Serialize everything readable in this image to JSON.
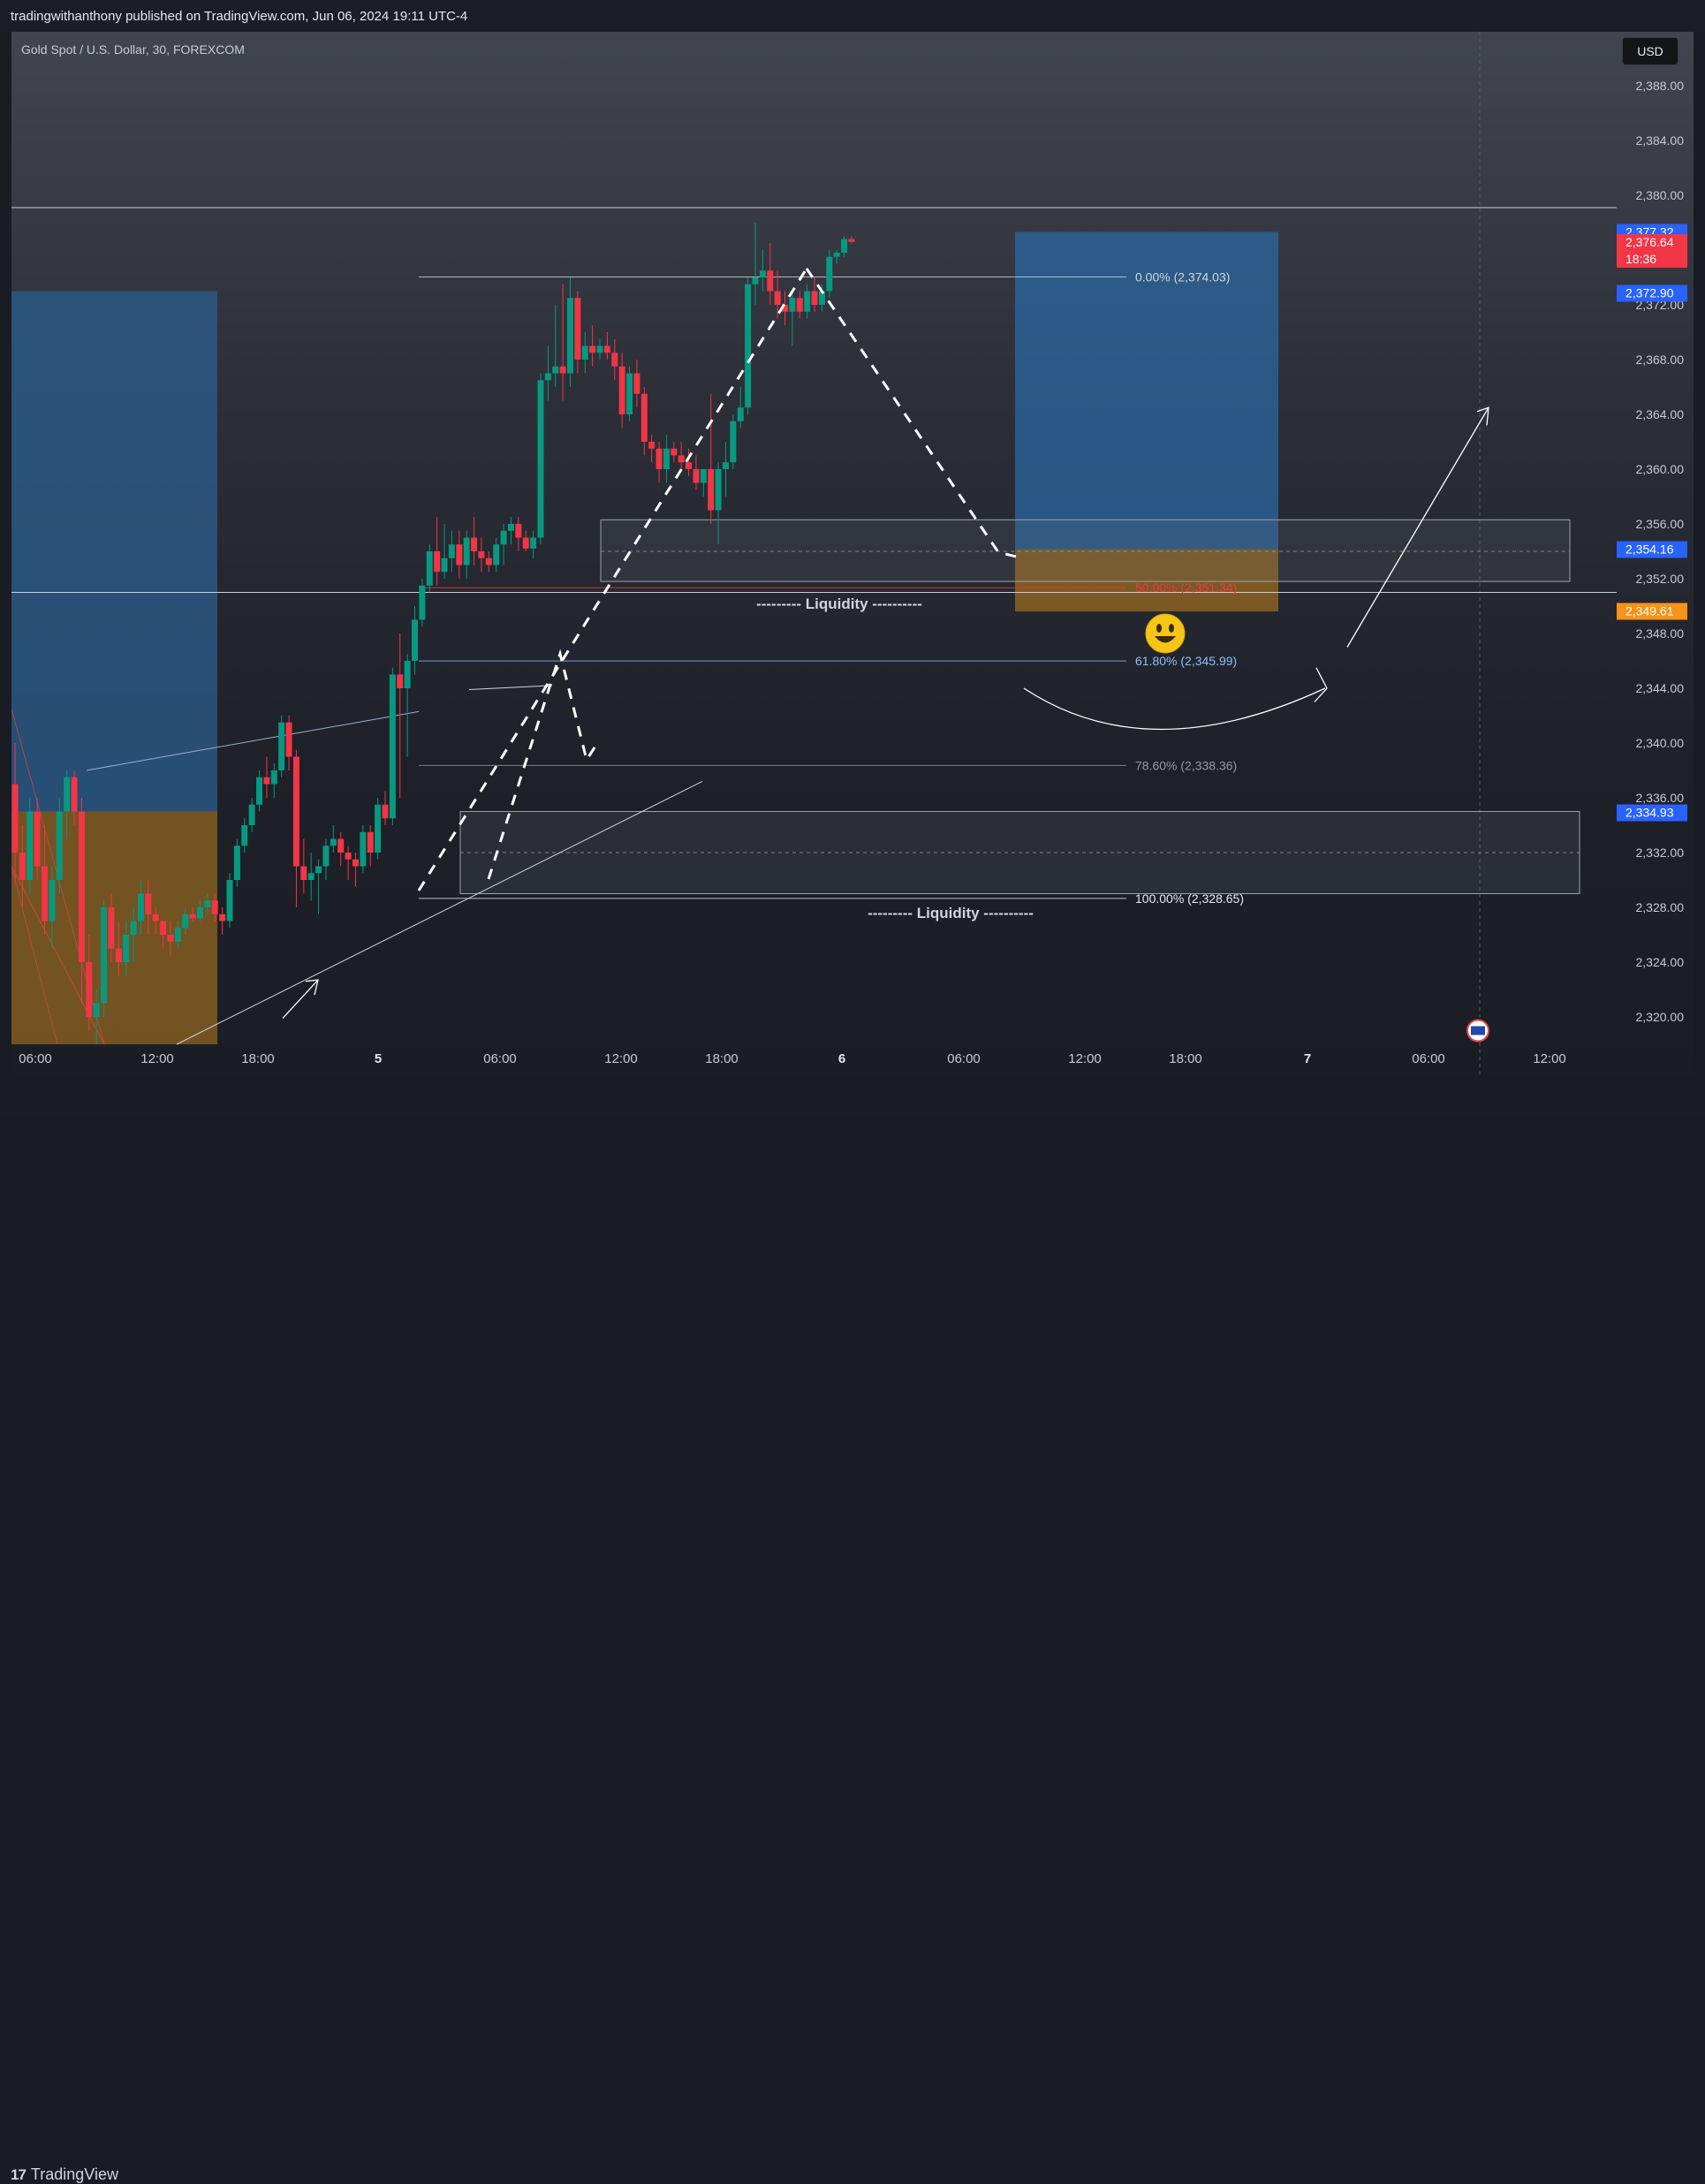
{
  "header": {
    "published_text": "tradingwithanthony published on TradingView.com, Jun 06, 2024 19:11 UTC-4"
  },
  "chart": {
    "symbol_title": "Gold Spot / U.S. Dollar, 30, FOREXCOM",
    "currency": "USD"
  },
  "chart_data": {
    "type": "candlestick",
    "y_axis_ticks": [
      "2,388.00",
      "2,384.00",
      "2,380.00",
      "2,372.00",
      "2,368.00",
      "2,364.00",
      "2,360.00",
      "2,356.00",
      "2,352.00",
      "2,348.00",
      "2,344.00",
      "2,340.00",
      "2,336.00",
      "2,332.00",
      "2,328.00",
      "2,324.00",
      "2,320.00"
    ],
    "x_axis_ticks": [
      {
        "label": "06:00",
        "bold": false
      },
      {
        "label": "12:00",
        "bold": false
      },
      {
        "label": "18:00",
        "bold": false
      },
      {
        "label": "5",
        "bold": true
      },
      {
        "label": "06:00",
        "bold": false
      },
      {
        "label": "12:00",
        "bold": false
      },
      {
        "label": "18:00",
        "bold": false
      },
      {
        "label": "6",
        "bold": true
      },
      {
        "label": "06:00",
        "bold": false
      },
      {
        "label": "12:00",
        "bold": false
      },
      {
        "label": "18:00",
        "bold": false
      },
      {
        "label": "7",
        "bold": true
      },
      {
        "label": "06:00",
        "bold": false
      },
      {
        "label": "12:00",
        "bold": false
      }
    ],
    "price_tags": [
      {
        "label": "2,377.32",
        "price": 2377.32,
        "color": "#2962ff"
      },
      {
        "label": "2,376.64",
        "label2": "18:36",
        "price": 2376.64,
        "color": "#f23645"
      },
      {
        "label": "2,372.90",
        "price": 2372.9,
        "color": "#2962ff"
      },
      {
        "label": "2,354.16",
        "price": 2354.16,
        "color": "#2962ff"
      },
      {
        "label": "2,349.61",
        "price": 2349.61,
        "color": "#f7931a"
      },
      {
        "label": "2,334.93",
        "price": 2334.93,
        "color": "#2962ff"
      }
    ],
    "fib_levels": [
      {
        "label": "0.00% (2,374.03)",
        "price": 2374.03,
        "color": "#d1d4dc"
      },
      {
        "label": "50.00% (2,351.34)",
        "price": 2351.34,
        "color": "#f23645"
      },
      {
        "label": "61.80% (2,345.99)",
        "price": 2345.99,
        "color": "#90bff9"
      },
      {
        "label": "78.60% (2,338.36)",
        "price": 2338.36,
        "color": "#9598a1"
      },
      {
        "label": "100.00% (2,328.65)",
        "price": 2328.65,
        "color": "#e6e8ee"
      }
    ],
    "annotations": [
      {
        "text": "--------- Liquidity ----------",
        "price": 2350.2
      },
      {
        "text": "--------- Liquidity ----------",
        "price": 2327.6
      }
    ],
    "horizontal_lines": [
      2379.1,
      2351.0
    ],
    "candles": [
      [
        2337.0,
        2340.0,
        2330.0,
        2332.0
      ],
      [
        2332.0,
        2334.0,
        2328.0,
        2330.0
      ],
      [
        2330.0,
        2336.0,
        2329.0,
        2335.0
      ],
      [
        2335.0,
        2336.0,
        2330.0,
        2331.0
      ],
      [
        2331.0,
        2334.0,
        2326.0,
        2327.0
      ],
      [
        2327.0,
        2331.0,
        2325.0,
        2330.0
      ],
      [
        2330.0,
        2336.0,
        2329.0,
        2335.0
      ],
      [
        2335.0,
        2338.0,
        2333.0,
        2337.5
      ],
      [
        2337.5,
        2338.0,
        2334.0,
        2335.0
      ],
      [
        2335.0,
        2336.0,
        2321.0,
        2324.0
      ],
      [
        2324.0,
        2326.0,
        2319.0,
        2320.0
      ],
      [
        2320.0,
        2322.0,
        2318.0,
        2321.0
      ],
      [
        2321.0,
        2328.5,
        2320.0,
        2328.0
      ],
      [
        2328.0,
        2329.0,
        2324.0,
        2325.0
      ],
      [
        2325.0,
        2327.0,
        2323.0,
        2324.0
      ],
      [
        2324.0,
        2327.0,
        2323.0,
        2326.0
      ],
      [
        2326.0,
        2328.0,
        2324.0,
        2327.0
      ],
      [
        2327.0,
        2330.0,
        2326.0,
        2329.0
      ],
      [
        2329.0,
        2330.0,
        2326.0,
        2327.5
      ],
      [
        2327.5,
        2328.0,
        2326.0,
        2327.0
      ],
      [
        2327.0,
        2327.0,
        2325.0,
        2326.0
      ],
      [
        2326.0,
        2327.0,
        2324.5,
        2325.5
      ],
      [
        2325.5,
        2327.0,
        2325.0,
        2326.5
      ],
      [
        2326.5,
        2328.0,
        2326.0,
        2327.5
      ],
      [
        2327.5,
        2328.0,
        2327.0,
        2327.2
      ],
      [
        2327.2,
        2328.5,
        2327.0,
        2328.0
      ],
      [
        2328.0,
        2329.0,
        2327.5,
        2328.5
      ],
      [
        2328.5,
        2329.0,
        2327.0,
        2327.5
      ],
      [
        2327.5,
        2328.0,
        2326.0,
        2327.0
      ],
      [
        2327.0,
        2330.5,
        2326.5,
        2330.0
      ],
      [
        2330.0,
        2333.0,
        2329.5,
        2332.5
      ],
      [
        2332.5,
        2334.5,
        2332.0,
        2334.0
      ],
      [
        2334.0,
        2336.0,
        2333.5,
        2335.5
      ],
      [
        2335.5,
        2338.0,
        2335.0,
        2337.5
      ],
      [
        2337.5,
        2339.0,
        2336.0,
        2337.0
      ],
      [
        2337.0,
        2338.5,
        2336.0,
        2338.0
      ],
      [
        2338.0,
        2342.0,
        2337.5,
        2341.5
      ],
      [
        2341.5,
        2342.0,
        2338.0,
        2339.0
      ],
      [
        2339.0,
        2339.5,
        2328.0,
        2331.0
      ],
      [
        2331.0,
        2333.0,
        2329.0,
        2330.0
      ],
      [
        2330.0,
        2332.0,
        2328.5,
        2330.5
      ],
      [
        2330.5,
        2331.5,
        2327.5,
        2331.0
      ],
      [
        2331.0,
        2333.0,
        2330.0,
        2332.5
      ],
      [
        2332.5,
        2334.0,
        2332.0,
        2333.0
      ],
      [
        2333.0,
        2333.5,
        2331.0,
        2332.0
      ],
      [
        2332.0,
        2332.5,
        2330.0,
        2331.5
      ],
      [
        2331.5,
        2332.0,
        2329.5,
        2331.0
      ],
      [
        2331.0,
        2334.0,
        2330.5,
        2333.5
      ],
      [
        2333.5,
        2334.0,
        2331.0,
        2332.0
      ],
      [
        2332.0,
        2336.0,
        2331.5,
        2335.5
      ],
      [
        2335.5,
        2336.5,
        2334.0,
        2334.5
      ],
      [
        2334.5,
        2345.5,
        2334.0,
        2345.0
      ],
      [
        2345.0,
        2348.0,
        2336.0,
        2344.0
      ],
      [
        2344.0,
        2346.5,
        2339.0,
        2346.0
      ],
      [
        2346.0,
        2350.0,
        2345.0,
        2349.0
      ],
      [
        2349.0,
        2352.0,
        2348.5,
        2351.5
      ],
      [
        2351.5,
        2354.5,
        2351.0,
        2354.0
      ],
      [
        2354.0,
        2356.5,
        2351.5,
        2352.5
      ],
      [
        2352.5,
        2356.0,
        2352.0,
        2353.5
      ],
      [
        2353.5,
        2355.5,
        2352.5,
        2354.5
      ],
      [
        2354.5,
        2355.5,
        2352.0,
        2353.0
      ],
      [
        2353.0,
        2355.5,
        2352.0,
        2355.0
      ],
      [
        2355.0,
        2356.5,
        2353.0,
        2354.0
      ],
      [
        2354.0,
        2355.0,
        2352.5,
        2353.5
      ],
      [
        2353.5,
        2354.0,
        2352.5,
        2353.0
      ],
      [
        2353.0,
        2355.0,
        2352.5,
        2354.5
      ],
      [
        2354.5,
        2356.0,
        2353.0,
        2355.5
      ],
      [
        2355.5,
        2356.5,
        2354.5,
        2356.0
      ],
      [
        2356.0,
        2356.5,
        2354.0,
        2355.0
      ],
      [
        2355.0,
        2355.5,
        2354.0,
        2354.2
      ],
      [
        2354.2,
        2355.5,
        2353.5,
        2355.0
      ],
      [
        2355.0,
        2367.0,
        2354.5,
        2366.5
      ],
      [
        2366.5,
        2369.0,
        2365.0,
        2367.0
      ],
      [
        2367.0,
        2372.0,
        2366.0,
        2367.5
      ],
      [
        2367.5,
        2373.5,
        2365.0,
        2367.0
      ],
      [
        2367.0,
        2374.0,
        2366.0,
        2372.5
      ],
      [
        2372.5,
        2373.0,
        2367.0,
        2368.0
      ],
      [
        2368.0,
        2370.0,
        2367.0,
        2369.0
      ],
      [
        2369.0,
        2370.5,
        2367.5,
        2368.5
      ],
      [
        2368.5,
        2369.5,
        2368.0,
        2369.0
      ],
      [
        2369.0,
        2370.0,
        2368.0,
        2368.5
      ],
      [
        2368.5,
        2369.5,
        2366.5,
        2367.5
      ],
      [
        2367.5,
        2368.5,
        2363.0,
        2364.0
      ],
      [
        2364.0,
        2367.5,
        2363.5,
        2367.0
      ],
      [
        2367.0,
        2368.0,
        2364.5,
        2365.5
      ],
      [
        2365.5,
        2366.0,
        2361.0,
        2362.0
      ],
      [
        2362.0,
        2362.5,
        2360.5,
        2361.5
      ],
      [
        2361.5,
        2362.0,
        2359.0,
        2360.0
      ],
      [
        2360.0,
        2362.5,
        2359.0,
        2361.5
      ],
      [
        2361.5,
        2362.0,
        2360.5,
        2361.0
      ],
      [
        2361.0,
        2362.0,
        2360.0,
        2360.5
      ],
      [
        2360.5,
        2361.5,
        2359.5,
        2360.0
      ],
      [
        2360.0,
        2361.0,
        2358.5,
        2359.0
      ],
      [
        2359.0,
        2360.0,
        2358.0,
        2360.0
      ],
      [
        2360.0,
        2365.5,
        2356.0,
        2357.0
      ],
      [
        2357.0,
        2360.5,
        2354.5,
        2360.0
      ],
      [
        2360.0,
        2362.0,
        2358.0,
        2360.5
      ],
      [
        2360.5,
        2364.0,
        2360.0,
        2363.5
      ],
      [
        2363.5,
        2366.0,
        2363.0,
        2364.5
      ],
      [
        2364.5,
        2374.0,
        2364.0,
        2373.5
      ],
      [
        2373.5,
        2378.0,
        2372.0,
        2374.0
      ],
      [
        2374.0,
        2376.0,
        2373.0,
        2374.5
      ],
      [
        2374.5,
        2376.5,
        2372.0,
        2373.0
      ],
      [
        2373.0,
        2374.5,
        2371.0,
        2372.0
      ],
      [
        2372.0,
        2373.0,
        2370.5,
        2371.5
      ],
      [
        2371.5,
        2373.0,
        2369.0,
        2372.5
      ],
      [
        2372.5,
        2373.0,
        2371.0,
        2371.5
      ],
      [
        2371.5,
        2373.5,
        2371.0,
        2373.0
      ],
      [
        2373.0,
        2374.0,
        2371.5,
        2372.0
      ],
      [
        2372.0,
        2373.5,
        2371.5,
        2373.0
      ],
      [
        2373.0,
        2376.0,
        2372.5,
        2375.5
      ],
      [
        2375.5,
        2376.0,
        2375.0,
        2375.8
      ],
      [
        2375.8,
        2377.0,
        2375.5,
        2376.8
      ],
      [
        2376.8,
        2377.0,
        2376.5,
        2376.6
      ]
    ]
  }
}
